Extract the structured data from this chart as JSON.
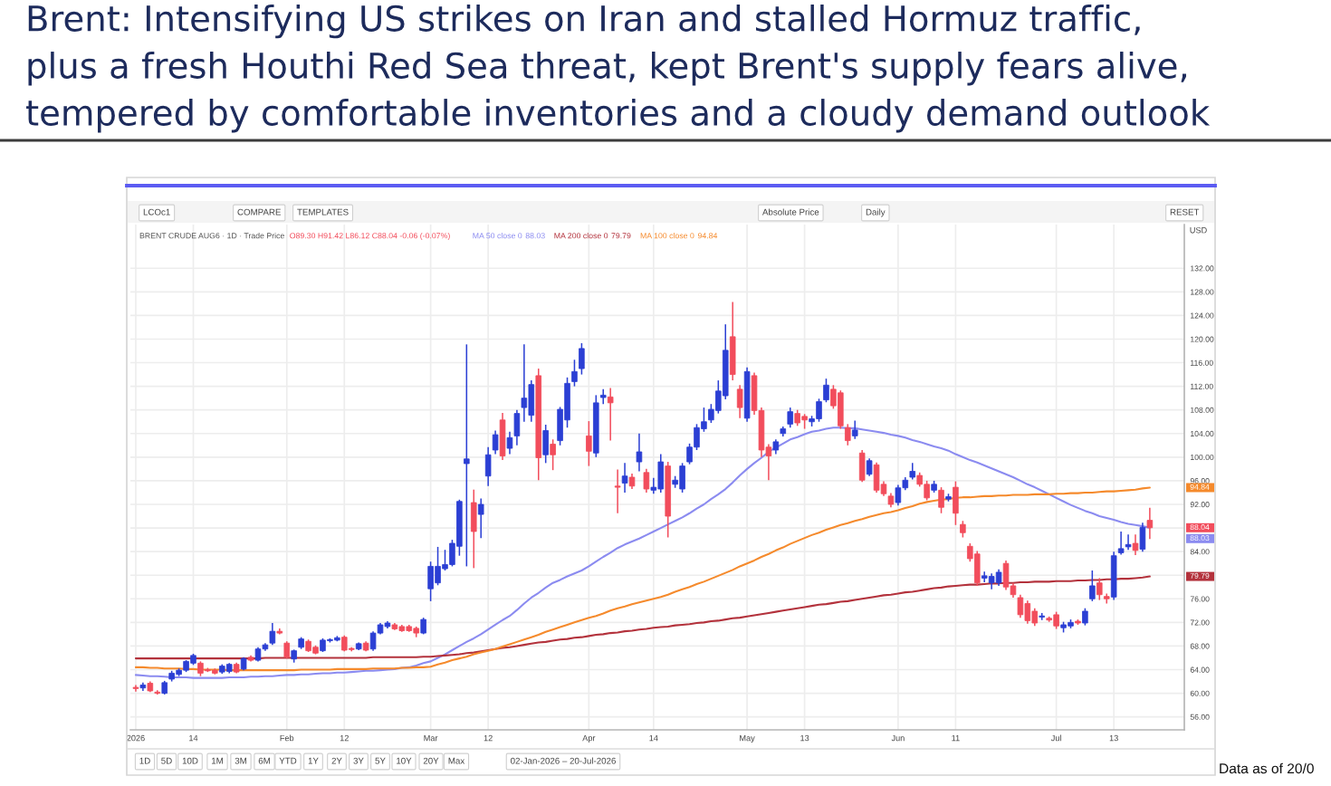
{
  "chart_data": {
    "type": "candlestick",
    "title": "Brent: Intensifying US strikes on Iran and stalled Hormuz traffic,\nplus a fresh Houthi Red Sea threat, kept Brent's supply fears alive,\ntempered by comfortable inventories and a cloudy demand outlook",
    "ylabel": "USD",
    "annotations": [
      "Data as of 20/0",
      "BRENT CRUDE AUG6 · 1D · Trade Price",
      "O89.30 H91.42 L86.12 C88.04 -0.06 (-0.07%)",
      "LCOc1",
      "COMPARE",
      "TEMPLATES",
      "Absolute Price",
      "Daily",
      "RESET",
      "1D",
      "5D",
      "10D",
      "1M",
      "3M",
      "6M",
      "YTD",
      "1Y",
      "2Y",
      "3Y",
      "5Y",
      "10Y",
      "20Y",
      "Max",
      "02-Jan-2026 – 20-Jul-2026",
      "88.04",
      "88.03",
      "79.79",
      "94.84"
    ],
    "categories": [
      "2026",
      null,
      null,
      null,
      null,
      null,
      null,
      null,
      "14",
      null,
      null,
      null,
      null,
      null,
      null,
      null,
      null,
      null,
      null,
      null,
      null,
      "Feb",
      null,
      null,
      null,
      null,
      null,
      null,
      null,
      "12",
      null,
      null,
      null,
      null,
      null,
      null,
      null,
      null,
      null,
      null,
      null,
      "Mar",
      null,
      null,
      null,
      null,
      null,
      null,
      null,
      "12",
      null,
      null,
      null,
      null,
      null,
      null,
      null,
      null,
      null,
      null,
      null,
      null,
      null,
      "Apr",
      null,
      null,
      null,
      null,
      null,
      null,
      null,
      null,
      "14",
      null,
      null,
      null,
      null,
      null,
      null,
      null,
      null,
      null,
      null,
      null,
      null,
      "May",
      null,
      null,
      null,
      null,
      null,
      null,
      null,
      "13",
      null,
      null,
      null,
      null,
      null,
      null,
      null,
      null,
      null,
      null,
      null,
      null,
      "Jun",
      null,
      null,
      null,
      null,
      null,
      null,
      null,
      "11",
      null,
      null,
      null,
      null,
      null,
      null,
      null,
      null,
      null,
      null,
      null,
      null,
      null,
      "Jul",
      null,
      null,
      null,
      null,
      null,
      null,
      null,
      "13",
      null,
      null,
      null,
      null,
      null
    ],
    "ylim": [
      53.8,
      139.4
    ],
    "yticks": [
      {
        "value": 56,
        "label": "56.00"
      },
      {
        "value": 60,
        "label": "60.00"
      },
      {
        "value": 64,
        "label": "64.00"
      },
      {
        "value": 68,
        "label": "68.00"
      },
      {
        "value": 72,
        "label": "72.00"
      },
      {
        "value": 76,
        "label": "76.00"
      },
      {
        "value": 80,
        "label": null
      },
      {
        "value": 84,
        "label": "84.00"
      },
      {
        "value": 88,
        "label": null
      },
      {
        "value": 92,
        "label": "92.00"
      },
      {
        "value": 96,
        "label": "96.00"
      },
      {
        "value": 100,
        "label": "100.00"
      },
      {
        "value": 104,
        "label": "104.00"
      },
      {
        "value": 108,
        "label": "108.00"
      },
      {
        "value": 112,
        "label": "112.00"
      },
      {
        "value": 116,
        "label": "116.00"
      },
      {
        "value": 120,
        "label": "120.00"
      },
      {
        "value": 124,
        "label": "124.00"
      },
      {
        "value": 128,
        "label": "128.00"
      },
      {
        "value": 132,
        "label": "132.00"
      }
    ],
    "ohlc": [
      [
        61.0,
        61.4,
        60.3,
        60.8
      ],
      [
        60.9,
        61.8,
        60.4,
        61.4
      ],
      [
        61.7,
        62.0,
        60.2,
        60.4
      ],
      [
        60.2,
        60.5,
        59.8,
        60.0
      ],
      [
        60.0,
        62.1,
        59.8,
        61.8
      ],
      [
        62.4,
        63.8,
        62.0,
        63.4
      ],
      [
        63.2,
        64.2,
        62.9,
        63.9
      ],
      [
        63.9,
        65.6,
        63.6,
        65.4
      ],
      [
        65.1,
        66.7,
        64.8,
        66.4
      ],
      [
        65.1,
        65.4,
        62.9,
        63.4
      ],
      [
        64.0,
        64.3,
        63.6,
        63.8
      ],
      [
        63.9,
        64.2,
        63.2,
        63.4
      ],
      [
        63.6,
        64.9,
        63.3,
        64.6
      ],
      [
        63.7,
        65.1,
        63.4,
        64.9
      ],
      [
        64.9,
        65.2,
        63.4,
        63.6
      ],
      [
        64.1,
        66.1,
        63.9,
        65.9
      ],
      [
        66.1,
        66.4,
        65.4,
        65.6
      ],
      [
        65.6,
        67.8,
        65.4,
        67.5
      ],
      [
        67.5,
        68.5,
        67.2,
        68.2
      ],
      [
        68.5,
        71.9,
        68.2,
        70.5
      ],
      [
        70.5,
        71.0,
        70.0,
        70.2
      ],
      [
        68.5,
        68.8,
        65.9,
        66.1
      ],
      [
        65.8,
        67.4,
        65.2,
        67.2
      ],
      [
        67.8,
        69.5,
        67.5,
        69.2
      ],
      [
        68.8,
        69.1,
        67.0,
        67.2
      ],
      [
        67.8,
        68.1,
        66.6,
        66.8
      ],
      [
        67.2,
        69.3,
        67.0,
        69.0
      ],
      [
        68.9,
        69.3,
        68.6,
        69.1
      ],
      [
        69.0,
        69.7,
        68.8,
        69.4
      ],
      [
        69.5,
        69.8,
        67.1,
        67.3
      ],
      [
        67.6,
        67.8,
        67.1,
        67.4
      ],
      [
        67.5,
        68.6,
        67.3,
        68.4
      ],
      [
        68.5,
        68.8,
        67.1,
        67.3
      ],
      [
        67.5,
        70.5,
        67.2,
        70.2
      ],
      [
        70.2,
        71.9,
        70.0,
        71.6
      ],
      [
        71.3,
        72.2,
        71.0,
        71.9
      ],
      [
        71.6,
        71.9,
        70.7,
        70.9
      ],
      [
        71.3,
        71.6,
        70.4,
        70.6
      ],
      [
        71.3,
        71.6,
        70.4,
        70.6
      ],
      [
        71.0,
        71.3,
        69.5,
        70.2
      ],
      [
        70.2,
        72.8,
        70.0,
        72.5
      ],
      [
        77.7,
        82.3,
        75.6,
        81.5
      ],
      [
        78.7,
        84.8,
        78.3,
        81.5
      ],
      [
        81.1,
        84.3,
        80.8,
        81.8
      ],
      [
        81.8,
        86.0,
        81.5,
        85.4
      ],
      [
        84.9,
        92.8,
        83.3,
        92.5
      ],
      [
        98.9,
        119.1,
        81.5,
        99.7
      ],
      [
        92.3,
        94.5,
        81.2,
        87.4
      ],
      [
        90.3,
        93.0,
        86.3,
        92.0
      ],
      [
        96.8,
        101.7,
        95.1,
        100.4
      ],
      [
        101.2,
        104.5,
        100.5,
        103.8
      ],
      [
        106.3,
        107.5,
        99.5,
        100.2
      ],
      [
        101.5,
        104.3,
        100.5,
        103.3
      ],
      [
        103.6,
        108.0,
        102.0,
        107.4
      ],
      [
        108.4,
        119.1,
        106.0,
        110.0
      ],
      [
        107.1,
        113.0,
        106.0,
        112.3
      ],
      [
        113.8,
        115.0,
        96.1,
        99.9
      ],
      [
        100.4,
        105.5,
        99.0,
        104.5
      ],
      [
        102.2,
        103.0,
        97.8,
        100.4
      ],
      [
        102.8,
        108.5,
        102.0,
        108.1
      ],
      [
        106.3,
        113.5,
        105.0,
        112.5
      ],
      [
        112.8,
        116.5,
        112.0,
        114.5
      ],
      [
        115.0,
        119.3,
        114.0,
        118.4
      ],
      [
        103.6,
        106.1,
        98.5,
        101.0
      ],
      [
        100.7,
        110.5,
        100.0,
        109.2
      ],
      [
        110.1,
        111.5,
        109.0,
        110.5
      ],
      [
        110.2,
        111.7,
        102.8,
        109.2
      ],
      [
        95.1,
        97.9,
        90.5,
        94.9
      ],
      [
        95.6,
        99.0,
        94.0,
        96.8
      ],
      [
        96.6,
        97.2,
        94.6,
        95.1
      ],
      [
        99.2,
        104.0,
        97.6,
        100.9
      ],
      [
        97.4,
        98.0,
        94.0,
        94.6
      ],
      [
        94.4,
        96.5,
        93.8,
        94.9
      ],
      [
        94.6,
        100.5,
        94.0,
        99.2
      ],
      [
        98.5,
        99.2,
        86.4,
        90.0
      ],
      [
        95.4,
        96.8,
        94.8,
        96.1
      ],
      [
        94.6,
        99.0,
        94.0,
        98.5
      ],
      [
        99.2,
        102.3,
        98.8,
        101.7
      ],
      [
        101.7,
        105.6,
        101.2,
        105.0
      ],
      [
        104.8,
        108.4,
        104.3,
        106.0
      ],
      [
        106.3,
        109.0,
        105.8,
        108.1
      ],
      [
        107.9,
        113.0,
        107.4,
        111.2
      ],
      [
        110.4,
        122.5,
        109.8,
        118.1
      ],
      [
        120.4,
        126.3,
        113.0,
        114.0
      ],
      [
        111.5,
        112.2,
        106.6,
        108.4
      ],
      [
        106.6,
        115.2,
        106.0,
        114.5
      ],
      [
        113.8,
        114.3,
        107.2,
        107.9
      ],
      [
        107.9,
        108.4,
        100.0,
        101.2
      ],
      [
        101.7,
        102.2,
        96.1,
        100.2
      ],
      [
        101.2,
        103.0,
        100.5,
        102.6
      ],
      [
        104.0,
        105.2,
        103.5,
        104.8
      ],
      [
        105.6,
        108.4,
        105.0,
        107.7
      ],
      [
        107.4,
        108.0,
        105.3,
        105.8
      ],
      [
        106.9,
        107.3,
        104.8,
        106.3
      ],
      [
        106.0,
        107.0,
        105.2,
        106.5
      ],
      [
        106.5,
        109.9,
        106.0,
        109.4
      ],
      [
        109.7,
        113.3,
        109.3,
        112.2
      ],
      [
        111.5,
        112.2,
        108.2,
        108.7
      ],
      [
        110.9,
        111.3,
        104.8,
        105.3
      ],
      [
        105.0,
        105.6,
        102.0,
        102.8
      ],
      [
        103.6,
        106.2,
        103.1,
        104.6
      ],
      [
        100.7,
        101.2,
        95.8,
        96.1
      ],
      [
        97.1,
        99.8,
        96.8,
        99.4
      ],
      [
        98.7,
        99.1,
        94.0,
        94.4
      ],
      [
        95.4,
        95.9,
        93.4,
        93.8
      ],
      [
        93.4,
        93.9,
        91.5,
        92.0
      ],
      [
        92.3,
        95.3,
        91.8,
        94.8
      ],
      [
        94.8,
        96.6,
        94.4,
        96.1
      ],
      [
        96.6,
        99.0,
        96.2,
        97.6
      ],
      [
        96.9,
        97.4,
        95.0,
        95.4
      ],
      [
        95.4,
        96.0,
        92.7,
        93.1
      ],
      [
        94.4,
        96.0,
        94.0,
        95.4
      ],
      [
        94.4,
        94.9,
        90.5,
        91.5
      ],
      [
        92.9,
        93.8,
        92.5,
        93.3
      ],
      [
        94.9,
        95.9,
        88.5,
        90.5
      ],
      [
        88.6,
        89.2,
        86.4,
        87.2
      ],
      [
        84.9,
        85.4,
        82.3,
        82.8
      ],
      [
        83.6,
        84.1,
        78.2,
        78.7
      ],
      [
        79.5,
        80.6,
        78.8,
        79.9
      ],
      [
        78.7,
        80.3,
        77.6,
        79.8
      ],
      [
        78.7,
        81.0,
        78.2,
        80.5
      ],
      [
        82.0,
        82.5,
        77.5,
        78.0
      ],
      [
        78.2,
        78.7,
        76.2,
        76.7
      ],
      [
        76.2,
        76.7,
        72.8,
        73.3
      ],
      [
        75.2,
        75.7,
        71.8,
        72.3
      ],
      [
        73.9,
        74.4,
        71.4,
        71.9
      ],
      [
        72.9,
        73.6,
        72.4,
        73.1
      ],
      [
        72.7,
        73.0,
        72.1,
        72.4
      ],
      [
        73.3,
        73.8,
        70.9,
        71.4
      ],
      [
        71.1,
        72.1,
        70.3,
        71.6
      ],
      [
        71.4,
        72.5,
        71.0,
        72.0
      ],
      [
        72.2,
        72.5,
        71.6,
        71.9
      ],
      [
        71.9,
        74.4,
        71.5,
        73.9
      ],
      [
        76.0,
        80.8,
        75.6,
        78.2
      ],
      [
        78.7,
        79.5,
        75.8,
        76.7
      ],
      [
        76.4,
        76.9,
        75.2,
        76.0
      ],
      [
        76.3,
        84.0,
        75.8,
        83.3
      ],
      [
        83.8,
        87.4,
        83.5,
        84.5
      ],
      [
        84.8,
        86.9,
        84.3,
        85.2
      ],
      [
        85.4,
        86.9,
        83.4,
        84.2
      ],
      [
        84.4,
        88.9,
        84.0,
        88.1
      ],
      [
        89.3,
        91.42,
        86.12,
        88.04
      ]
    ],
    "colors": [
      "#f24d5c",
      "#2b3fd4",
      "#f24d5c",
      "#f24d5c",
      "#2b3fd4",
      "#2b3fd4",
      "#2b3fd4",
      "#2b3fd4",
      "#2b3fd4",
      "#f24d5c",
      "#f24d5c",
      "#f24d5c",
      "#2b3fd4",
      "#2b3fd4",
      "#f24d5c",
      "#2b3fd4",
      "#f24d5c",
      "#2b3fd4",
      "#2b3fd4",
      "#2b3fd4",
      "#f24d5c",
      "#f24d5c",
      "#2b3fd4",
      "#2b3fd4",
      "#f24d5c",
      "#f24d5c",
      "#2b3fd4",
      "#2b3fd4",
      "#2b3fd4",
      "#f24d5c",
      "#f24d5c",
      "#2b3fd4",
      "#f24d5c",
      "#2b3fd4",
      "#2b3fd4",
      "#2b3fd4",
      "#f24d5c",
      "#f24d5c",
      "#f24d5c",
      "#f24d5c",
      "#2b3fd4",
      "#2b3fd4",
      "#2b3fd4",
      "#2b3fd4",
      "#2b3fd4",
      "#2b3fd4",
      "#2b3fd4",
      "#f24d5c",
      "#2b3fd4",
      "#2b3fd4",
      "#2b3fd4",
      "#f24d5c",
      "#2b3fd4",
      "#2b3fd4",
      "#2b3fd4",
      "#2b3fd4",
      "#f24d5c",
      "#2b3fd4",
      "#f24d5c",
      "#2b3fd4",
      "#2b3fd4",
      "#2b3fd4",
      "#2b3fd4",
      "#f24d5c",
      "#2b3fd4",
      "#2b3fd4",
      "#f24d5c",
      "#f24d5c",
      "#2b3fd4",
      "#f24d5c",
      "#2b3fd4",
      "#f24d5c",
      "#2b3fd4",
      "#2b3fd4",
      "#f24d5c",
      "#2b3fd4",
      "#2b3fd4",
      "#2b3fd4",
      "#2b3fd4",
      "#2b3fd4",
      "#2b3fd4",
      "#2b3fd4",
      "#2b3fd4",
      "#f24d5c",
      "#f24d5c",
      "#2b3fd4",
      "#f24d5c",
      "#f24d5c",
      "#f24d5c",
      "#2b3fd4",
      "#2b3fd4",
      "#2b3fd4",
      "#f24d5c",
      "#f24d5c",
      "#2b3fd4",
      "#2b3fd4",
      "#2b3fd4",
      "#f24d5c",
      "#f24d5c",
      "#f24d5c",
      "#2b3fd4",
      "#f24d5c",
      "#2b3fd4",
      "#f24d5c",
      "#f24d5c",
      "#f24d5c",
      "#2b3fd4",
      "#2b3fd4",
      "#2b3fd4",
      "#f24d5c",
      "#f24d5c",
      "#2b3fd4",
      "#f24d5c",
      "#2b3fd4",
      "#f24d5c",
      "#f24d5c",
      "#f24d5c",
      "#f24d5c",
      "#2b3fd4",
      "#2b3fd4",
      "#2b3fd4",
      "#f24d5c",
      "#f24d5c",
      "#f24d5c",
      "#f24d5c",
      "#f24d5c",
      "#2b3fd4",
      "#f24d5c",
      "#f24d5c",
      "#2b3fd4",
      "#2b3fd4",
      "#f24d5c",
      "#2b3fd4",
      "#2b3fd4",
      "#f24d5c",
      "#f24d5c",
      "#2b3fd4",
      "#2b3fd4",
      "#2b3fd4",
      "#f24d5c",
      "#2b3fd4",
      "#f24d5c"
    ],
    "series": [
      {
        "name": "MA 50 close 0",
        "type": "line",
        "color": "#8b8bf0",
        "values": [
          63.1,
          63.0,
          62.9,
          62.9,
          62.8,
          62.7,
          62.7,
          62.7,
          62.6,
          62.6,
          62.6,
          62.6,
          62.6,
          62.7,
          62.7,
          62.7,
          62.8,
          62.8,
          62.9,
          62.9,
          63.0,
          63.1,
          63.1,
          63.2,
          63.2,
          63.3,
          63.4,
          63.4,
          63.5,
          63.5,
          63.6,
          63.7,
          63.8,
          63.8,
          63.9,
          64.0,
          64.1,
          64.3,
          64.4,
          64.7,
          65.1,
          65.4,
          66.0,
          66.6,
          67.3,
          68.0,
          68.7,
          69.3,
          70.0,
          70.8,
          71.6,
          72.4,
          73.1,
          74.1,
          75.2,
          76.2,
          77.0,
          77.9,
          78.7,
          79.2,
          79.8,
          80.3,
          80.8,
          81.5,
          82.3,
          83.1,
          83.8,
          84.6,
          85.2,
          85.7,
          86.2,
          86.8,
          87.4,
          88.0,
          88.6,
          89.2,
          89.8,
          90.5,
          91.3,
          92.0,
          92.9,
          93.7,
          94.6,
          95.7,
          96.9,
          98.0,
          99.0,
          99.9,
          100.9,
          101.6,
          102.3,
          103.0,
          103.4,
          103.9,
          104.3,
          104.5,
          104.8,
          105.0,
          105.0,
          104.9,
          104.9,
          104.7,
          104.5,
          104.3,
          104.1,
          103.8,
          103.6,
          103.3,
          102.9,
          102.6,
          102.2,
          101.8,
          101.5,
          101.1,
          100.5,
          100.0,
          99.5,
          99.1,
          98.6,
          98.1,
          97.6,
          97.1,
          96.6,
          96.0,
          95.4,
          94.9,
          94.3,
          93.7,
          93.1,
          92.5,
          91.9,
          91.4,
          90.9,
          90.5,
          90.0,
          89.7,
          89.4,
          89.0,
          88.7,
          88.5,
          88.3,
          88.03
        ]
      },
      {
        "name": "MA 200 close 0",
        "type": "line",
        "color": "#b3323c",
        "values": [
          65.9,
          65.9,
          65.9,
          65.9,
          65.9,
          65.9,
          65.9,
          65.9,
          65.9,
          65.9,
          65.9,
          65.9,
          65.9,
          65.9,
          65.9,
          65.9,
          65.9,
          65.9,
          66.0,
          66.0,
          66.0,
          66.0,
          66.0,
          66.0,
          66.0,
          66.0,
          66.0,
          66.0,
          66.0,
          66.0,
          66.0,
          66.0,
          66.0,
          66.1,
          66.1,
          66.1,
          66.1,
          66.1,
          66.1,
          66.1,
          66.2,
          66.2,
          66.3,
          66.4,
          66.5,
          66.6,
          66.8,
          66.9,
          67.1,
          67.3,
          67.5,
          67.7,
          67.8,
          68.0,
          68.2,
          68.4,
          68.6,
          68.7,
          68.9,
          69.1,
          69.2,
          69.4,
          69.5,
          69.7,
          69.9,
          70.0,
          70.2,
          70.3,
          70.5,
          70.6,
          70.8,
          70.9,
          71.1,
          71.2,
          71.3,
          71.5,
          71.6,
          71.7,
          71.9,
          72.0,
          72.2,
          72.3,
          72.5,
          72.7,
          72.8,
          73.0,
          73.2,
          73.4,
          73.6,
          73.8,
          74.0,
          74.2,
          74.4,
          74.6,
          74.8,
          75.0,
          75.1,
          75.3,
          75.5,
          75.6,
          75.8,
          76.0,
          76.2,
          76.4,
          76.6,
          76.7,
          76.9,
          77.1,
          77.2,
          77.4,
          77.6,
          77.8,
          77.9,
          78.1,
          78.2,
          78.3,
          78.4,
          78.4,
          78.5,
          78.6,
          78.6,
          78.7,
          78.7,
          78.8,
          78.8,
          78.9,
          78.9,
          78.9,
          79.0,
          79.0,
          79.0,
          79.1,
          79.1,
          79.2,
          79.2,
          79.3,
          79.3,
          79.4,
          79.4,
          79.5,
          79.6,
          79.79
        ]
      },
      {
        "name": "MA 100 close 0",
        "type": "line",
        "color": "#f58a2c",
        "values": [
          64.4,
          64.4,
          64.3,
          64.3,
          64.2,
          64.2,
          64.2,
          64.1,
          64.1,
          64.0,
          64.0,
          64.0,
          64.0,
          63.9,
          63.9,
          63.9,
          63.9,
          63.9,
          63.9,
          63.9,
          63.9,
          63.9,
          63.9,
          64.0,
          64.0,
          64.0,
          64.0,
          64.0,
          64.1,
          64.1,
          64.1,
          64.1,
          64.1,
          64.2,
          64.2,
          64.2,
          64.2,
          64.3,
          64.3,
          64.4,
          64.4,
          64.5,
          64.9,
          65.2,
          65.6,
          65.9,
          66.2,
          66.6,
          66.9,
          67.2,
          67.5,
          67.9,
          68.3,
          68.7,
          69.1,
          69.5,
          69.9,
          70.4,
          70.8,
          71.2,
          71.6,
          72.0,
          72.4,
          72.8,
          73.1,
          73.5,
          74.0,
          74.4,
          74.7,
          75.1,
          75.4,
          75.7,
          76.0,
          76.3,
          76.7,
          77.2,
          77.6,
          78.0,
          78.5,
          78.9,
          79.4,
          79.9,
          80.4,
          80.9,
          81.5,
          82.0,
          82.5,
          83.1,
          83.6,
          84.2,
          84.7,
          85.3,
          85.8,
          86.3,
          86.8,
          87.2,
          87.7,
          88.1,
          88.5,
          88.8,
          89.2,
          89.5,
          89.9,
          90.2,
          90.5,
          90.7,
          91.0,
          91.4,
          91.7,
          92.1,
          92.4,
          92.6,
          92.8,
          92.9,
          93.1,
          93.2,
          93.2,
          93.3,
          93.4,
          93.4,
          93.5,
          93.5,
          93.6,
          93.6,
          93.6,
          93.7,
          93.7,
          93.7,
          93.8,
          93.8,
          93.9,
          93.9,
          94.0,
          94.0,
          94.1,
          94.2,
          94.2,
          94.3,
          94.4,
          94.5,
          94.7,
          94.84
        ]
      }
    ],
    "grid": true,
    "legend": "top left"
  }
}
